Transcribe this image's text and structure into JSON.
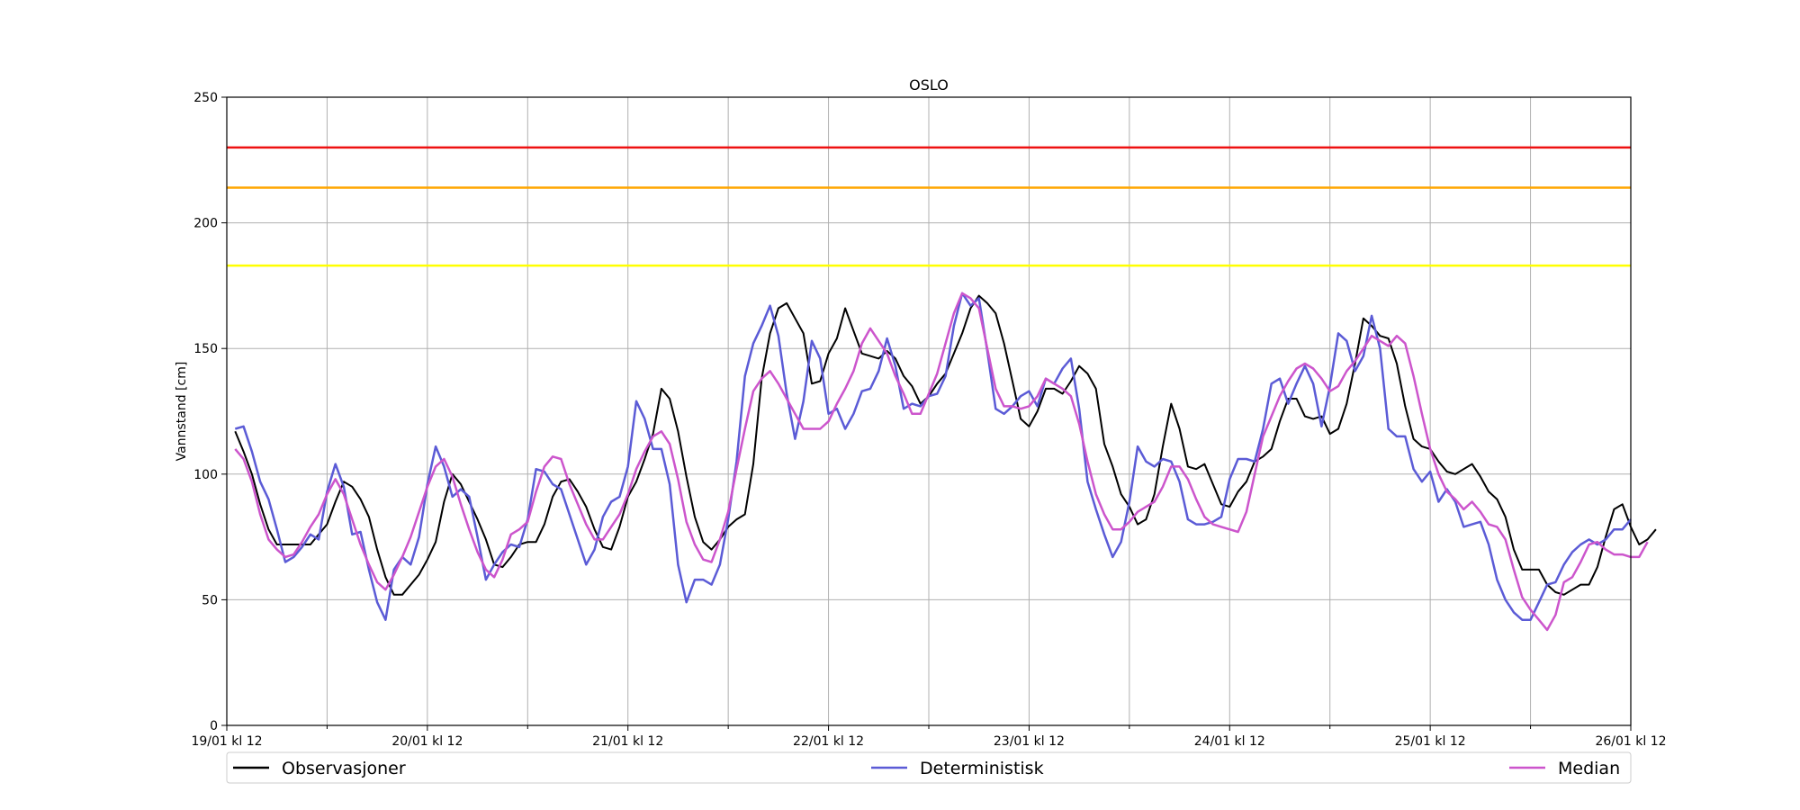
{
  "chart_data": {
    "type": "line",
    "title": "OSLO",
    "xlabel": "",
    "ylabel": "Vannstand [cm]",
    "xlim": [
      0,
      168
    ],
    "ylim": [
      0,
      250
    ],
    "yticks": [
      0,
      50,
      100,
      150,
      200,
      250
    ],
    "xtick_hours": [
      0,
      24,
      48,
      72,
      96,
      120,
      144,
      168
    ],
    "xtick_labels": [
      "19/01 kl 12",
      "20/01 kl 12",
      "21/01 kl 12",
      "22/01 kl 12",
      "23/01 kl 12",
      "24/01 kl 12",
      "25/01 kl 12",
      "26/01 kl 12"
    ],
    "minor_xtick_hours": [
      12,
      36,
      60,
      84,
      108,
      132,
      156
    ],
    "grid": true,
    "thresholds": [
      {
        "value": 230,
        "color": "#ee1111"
      },
      {
        "value": 214,
        "color": "#ffa500"
      },
      {
        "value": 183,
        "color": "#ffff00"
      }
    ],
    "legend": {
      "position": "bottom",
      "entries": [
        {
          "label": "Observasjoner",
          "color": "#000000"
        },
        {
          "label": "Deterministisk",
          "color": "#5b5bd6"
        },
        {
          "label": "Median",
          "color": "#cc55cc"
        }
      ]
    },
    "series": [
      {
        "name": "Observasjoner",
        "color": "#000000",
        "start_hour": 1,
        "step_hours": 1,
        "values": [
          117,
          109,
          100,
          88,
          78,
          72,
          72,
          72,
          72,
          72,
          76,
          80,
          89,
          97,
          95,
          90,
          83,
          70,
          59,
          52,
          52,
          56,
          60,
          66,
          73,
          89,
          100,
          96,
          89,
          82,
          74,
          64,
          63,
          67,
          72,
          73,
          73,
          80,
          91,
          97,
          98,
          93,
          87,
          78,
          71,
          70,
          79,
          91,
          97,
          106,
          116,
          134,
          130,
          117,
          99,
          83,
          73,
          70,
          74,
          79,
          82,
          84,
          104,
          138,
          156,
          166,
          168,
          162,
          156,
          136,
          137,
          148,
          154,
          166,
          157,
          148,
          147,
          146,
          149,
          146,
          139,
          135,
          128,
          131,
          136,
          140,
          148,
          156,
          166,
          171,
          168,
          164,
          152,
          137,
          122,
          119,
          125,
          134,
          134,
          132,
          137,
          143,
          140,
          134,
          112,
          103,
          92,
          87,
          80,
          82,
          92,
          111,
          128,
          118,
          103,
          102,
          104,
          96,
          88,
          87,
          93,
          97,
          105,
          107,
          110,
          121,
          130,
          130,
          123,
          122,
          123,
          116,
          118,
          128,
          144,
          162,
          159,
          155,
          154,
          144,
          127,
          114,
          111,
          110,
          105,
          101,
          100,
          102,
          104,
          99,
          93,
          90,
          83,
          70,
          62,
          62,
          62,
          56,
          53,
          52,
          54,
          56,
          56,
          63,
          75,
          86,
          88,
          79,
          72,
          74,
          78
        ]
      },
      {
        "name": "Deterministisk",
        "color": "#5b5bd6",
        "start_hour": 1,
        "step_hours": 1,
        "values": [
          118,
          119,
          109,
          97,
          90,
          78,
          65,
          67,
          71,
          76,
          74,
          93,
          104,
          95,
          76,
          77,
          62,
          49,
          42,
          62,
          67,
          64,
          75,
          96,
          111,
          103,
          91,
          94,
          91,
          75,
          58,
          64,
          69,
          72,
          71,
          82,
          102,
          101,
          96,
          94,
          84,
          74,
          64,
          70,
          83,
          89,
          91,
          103,
          129,
          122,
          110,
          110,
          96,
          64,
          49,
          58,
          58,
          56,
          64,
          82,
          105,
          139,
          152,
          159,
          167,
          155,
          132,
          114,
          129,
          153,
          146,
          124,
          126,
          118,
          124,
          133,
          134,
          141,
          154,
          143,
          126,
          128,
          127,
          131,
          132,
          139,
          159,
          172,
          167,
          170,
          149,
          126,
          124,
          127,
          131,
          133,
          127,
          138,
          136,
          142,
          146,
          126,
          97,
          86,
          76,
          67,
          73,
          89,
          111,
          105,
          103,
          106,
          105,
          97,
          82,
          80,
          80,
          81,
          83,
          98,
          106,
          106,
          105,
          118,
          136,
          138,
          128,
          136,
          143,
          136,
          119,
          135,
          156,
          153,
          141,
          147,
          163,
          150,
          118,
          115,
          115,
          102,
          97,
          101,
          89,
          94,
          89,
          79,
          80,
          81,
          72,
          58,
          50,
          45,
          42,
          42,
          49,
          56,
          57,
          64,
          69,
          72,
          74,
          72,
          74,
          78,
          78,
          82
        ]
      },
      {
        "name": "Median",
        "color": "#cc55cc",
        "start_hour": 1,
        "step_hours": 1,
        "values": [
          110,
          106,
          97,
          84,
          74,
          70,
          67,
          68,
          73,
          79,
          84,
          92,
          98,
          92,
          82,
          72,
          64,
          57,
          54,
          60,
          67,
          75,
          85,
          95,
          103,
          106,
          99,
          88,
          78,
          69,
          62,
          59,
          66,
          76,
          78,
          81,
          93,
          103,
          107,
          106,
          96,
          88,
          80,
          74,
          74,
          79,
          84,
          92,
          102,
          109,
          115,
          117,
          112,
          98,
          81,
          72,
          66,
          65,
          74,
          85,
          102,
          118,
          133,
          138,
          141,
          136,
          130,
          124,
          118,
          118,
          118,
          121,
          128,
          134,
          141,
          152,
          158,
          153,
          148,
          139,
          132,
          124,
          124,
          132,
          140,
          152,
          164,
          172,
          170,
          166,
          150,
          134,
          127,
          127,
          126,
          127,
          131,
          138,
          136,
          134,
          131,
          120,
          105,
          92,
          84,
          78,
          78,
          81,
          85,
          87,
          89,
          95,
          103,
          103,
          98,
          90,
          83,
          80,
          79,
          78,
          77,
          85,
          100,
          115,
          123,
          131,
          137,
          142,
          144,
          142,
          138,
          133,
          135,
          141,
          145,
          150,
          155,
          153,
          151,
          155,
          152,
          139,
          124,
          110,
          100,
          93,
          90,
          86,
          89,
          85,
          80,
          79,
          74,
          62,
          51,
          46,
          42,
          38,
          44,
          57,
          59,
          65,
          72,
          73,
          70,
          68,
          68,
          67,
          67,
          73
        ]
      }
    ]
  }
}
